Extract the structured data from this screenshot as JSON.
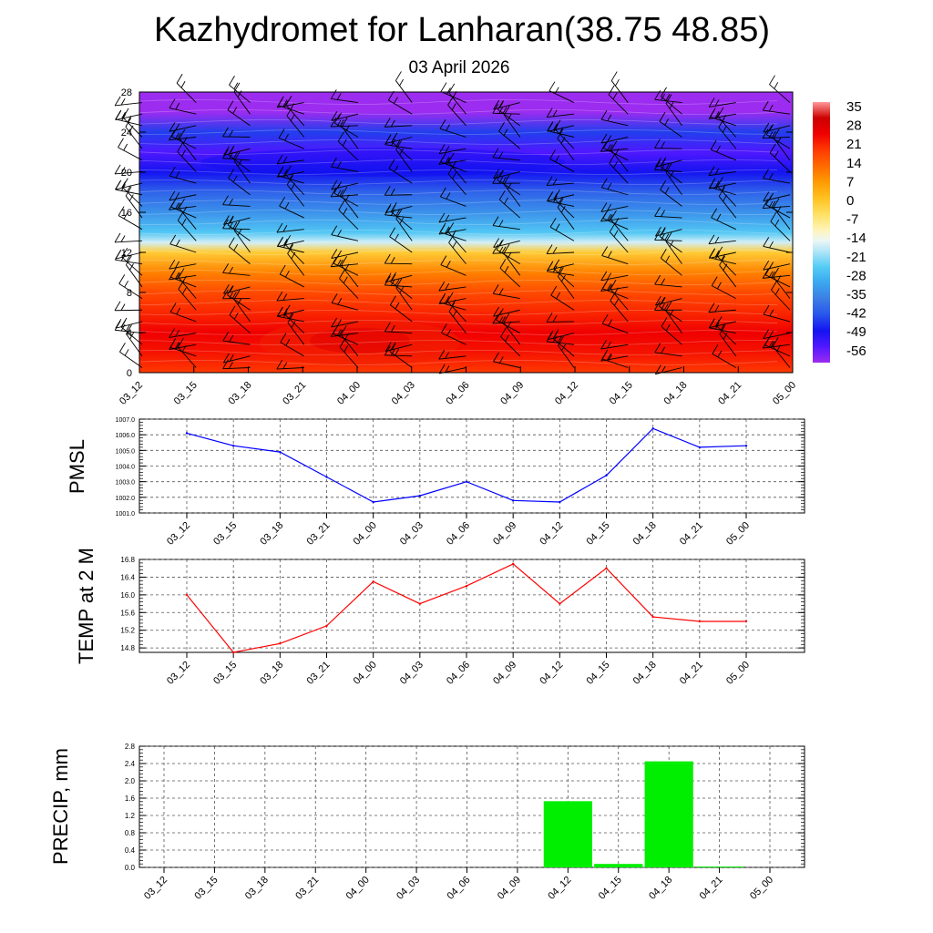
{
  "title": "Kazhydromet for Lanharan(38.75 48.85)",
  "subtitle": "03 April 2026",
  "time_labels": [
    "03_12",
    "03_15",
    "03_18",
    "03_21",
    "04_00",
    "04_03",
    "04_06",
    "04_09",
    "04_12",
    "04_15",
    "04_18",
    "04_21",
    "05_00"
  ],
  "colors": {
    "pmsl_line": "#0000ff",
    "temp_line": "#ff0000",
    "precip_bar": "#00ee00"
  },
  "chart_data": [
    {
      "type": "heatmap",
      "name": "vertical cross-section temperature with wind barbs",
      "x": [
        "03_12",
        "03_15",
        "03_18",
        "03_21",
        "04_00",
        "04_03",
        "04_06",
        "04_09",
        "04_12",
        "04_15",
        "04_18",
        "04_21",
        "05_00"
      ],
      "ylim": [
        0,
        28
      ],
      "yticks": [
        0,
        4,
        8,
        12,
        16,
        20,
        24,
        28
      ],
      "profile_levels": [
        0,
        2,
        4,
        6,
        8,
        10,
        12,
        13,
        14,
        16,
        18,
        20,
        22,
        24,
        26,
        28
      ],
      "profile_values": [
        20,
        24,
        26,
        22,
        18,
        11,
        0,
        -16,
        -25,
        -33,
        -40,
        -48,
        -54,
        -44,
        -62,
        -64
      ],
      "colorbar": {
        "ticks": [
          35,
          28,
          21,
          14,
          7,
          0,
          -7,
          -14,
          -21,
          -28,
          -35,
          -42,
          -49,
          -56
        ],
        "range": [
          -60,
          38
        ]
      }
    },
    {
      "type": "line",
      "name": "PMSL",
      "ylabel": "PMSL",
      "x": [
        "03_12",
        "03_15",
        "03_18",
        "03_21",
        "04_00",
        "04_03",
        "04_06",
        "04_09",
        "04_12",
        "04_15",
        "04_18",
        "04_21",
        "05_00"
      ],
      "values": [
        1006.1,
        1005.3,
        1004.9,
        1003.3,
        1001.7,
        1002.1,
        1003.0,
        1001.8,
        1001.7,
        1003.4,
        1006.4,
        1005.2,
        1005.3
      ],
      "ylim": [
        1001.0,
        1007.0
      ],
      "yticks": [
        "1001.0",
        "1002.0",
        "1003.0",
        "1004.0",
        "1005.0",
        "1006.0",
        "1007.0"
      ]
    },
    {
      "type": "line",
      "name": "TEMP at 2 M",
      "ylabel": "TEMP at 2 M",
      "x": [
        "03_12",
        "03_15",
        "03_18",
        "03_21",
        "04_00",
        "04_03",
        "04_06",
        "04_09",
        "04_12",
        "04_15",
        "04_18",
        "04_21",
        "05_00"
      ],
      "values": [
        16.0,
        14.7,
        14.9,
        15.3,
        16.3,
        15.8,
        16.2,
        16.7,
        15.8,
        16.6,
        15.5,
        15.4,
        15.4
      ],
      "ylim": [
        14.7,
        16.8
      ],
      "yticks": [
        "14.8",
        "15.2",
        "15.6",
        "16.0",
        "16.4",
        "16.8"
      ]
    },
    {
      "type": "bar",
      "name": "PRECIP, mm",
      "ylabel": "PRECIP, mm",
      "x": [
        "03_12",
        "03_15",
        "03_18",
        "03_21",
        "04_00",
        "04_03",
        "04_06",
        "04_09",
        "04_12",
        "04_15",
        "04_18",
        "04_21",
        "05_00"
      ],
      "values": [
        0,
        0,
        0,
        0,
        0,
        0,
        0,
        0,
        1.53,
        0.08,
        2.45,
        0.02,
        0
      ],
      "ylim": [
        0.0,
        2.8
      ],
      "yticks": [
        "0.0",
        "0.4",
        "0.8",
        "1.2",
        "1.6",
        "2.0",
        "2.4",
        "2.8"
      ]
    }
  ]
}
